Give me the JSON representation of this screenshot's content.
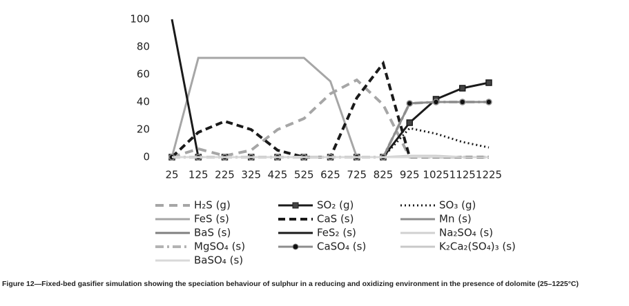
{
  "chart_data": {
    "type": "line",
    "categories": [
      "25",
      "125",
      "225",
      "325",
      "425",
      "525",
      "625",
      "725",
      "825",
      "925",
      "1025",
      "1125",
      "1225"
    ],
    "ylim": [
      0,
      100
    ],
    "yticks": [
      0,
      20,
      40,
      60,
      80,
      100
    ],
    "grid": false,
    "series": [
      {
        "name": "H₂S (g)",
        "color": "#a6a6a6",
        "dash": "12 8",
        "width": 4,
        "values": [
          0,
          6,
          1,
          5,
          20,
          28,
          46,
          56,
          38,
          0,
          0,
          0,
          0
        ]
      },
      {
        "name": "SO₂ (g)",
        "color": "#1a1a1a",
        "dash": "none",
        "width": 3,
        "marker": "square",
        "values": [
          0,
          0,
          0,
          0,
          0,
          0,
          0,
          0,
          0,
          25,
          42,
          50,
          54
        ]
      },
      {
        "name": "SO₃ (g)",
        "color": "#1a1a1a",
        "dash": "2 4",
        "width": 3,
        "values": [
          0,
          0,
          0,
          0,
          0,
          0,
          0,
          0,
          0,
          21,
          17,
          11,
          7
        ]
      },
      {
        "name": "FeS (s)",
        "color": "#a6a6a6",
        "dash": "none",
        "width": 3,
        "values": [
          0,
          72,
          72,
          72,
          72,
          72,
          55,
          0,
          0,
          0,
          0,
          0,
          0
        ]
      },
      {
        "name": "CaS (s)",
        "color": "#1a1a1a",
        "dash": "10 6",
        "width": 4,
        "values": [
          0,
          18,
          26,
          20,
          5,
          0,
          0,
          43,
          68,
          0,
          0,
          0,
          0
        ]
      },
      {
        "name": "Mn (s)",
        "color": "#8c8c8c",
        "dash": "none",
        "width": 3,
        "values": [
          0,
          0,
          0,
          0,
          0,
          0,
          0,
          0,
          0,
          0,
          0,
          0,
          0
        ]
      },
      {
        "name": "BaS (s)",
        "color": "#7f7f7f",
        "dash": "none",
        "width": 3,
        "values": [
          0,
          0,
          0,
          0,
          0,
          0,
          0,
          0,
          0,
          0,
          0,
          0,
          0
        ]
      },
      {
        "name": "FeS₂ (s)",
        "color": "#1a1a1a",
        "dash": "none",
        "width": 3,
        "values": [
          100,
          0,
          0,
          0,
          0,
          0,
          0,
          0,
          0,
          0,
          0,
          0,
          0
        ]
      },
      {
        "name": "Na₂SO₄ (s)",
        "color": "#d0d0d0",
        "dash": "none",
        "width": 3,
        "values": [
          0,
          0,
          0,
          0,
          0,
          0,
          0,
          0,
          0,
          1,
          1,
          0,
          0
        ]
      },
      {
        "name": "MgSO₄ (s)",
        "color": "#b3b3b3",
        "dash": "12 5 3 5",
        "width": 4,
        "values": [
          0,
          0,
          0,
          0,
          0,
          0,
          0,
          0,
          0,
          39,
          40,
          40,
          40
        ]
      },
      {
        "name": "CaSO₄ (s)",
        "color": "#8c8c8c",
        "dash": "none",
        "width": 3,
        "marker": "circle",
        "values": [
          0,
          0,
          0,
          0,
          0,
          0,
          0,
          0,
          0,
          39,
          40,
          40,
          40
        ]
      },
      {
        "name": "K₂Ca₂(SO₄)₃ (s)",
        "color": "#c8c8c8",
        "dash": "none",
        "width": 3,
        "values": [
          0,
          0,
          0,
          0,
          0,
          0,
          0,
          0,
          0,
          0,
          0,
          0,
          0
        ]
      },
      {
        "name": "BaSO₄ (s)",
        "color": "#d9d9d9",
        "dash": "none",
        "width": 3,
        "values": [
          0,
          0,
          0,
          0,
          0,
          0,
          0,
          0,
          0,
          0,
          0,
          0,
          0
        ]
      }
    ],
    "caption": "Figure 12—Fixed-bed gasifier simulation showing the speciation behaviour of sulphur in a reducing and oxidizing environment in the presence of dolomite (25–1225°C)"
  }
}
